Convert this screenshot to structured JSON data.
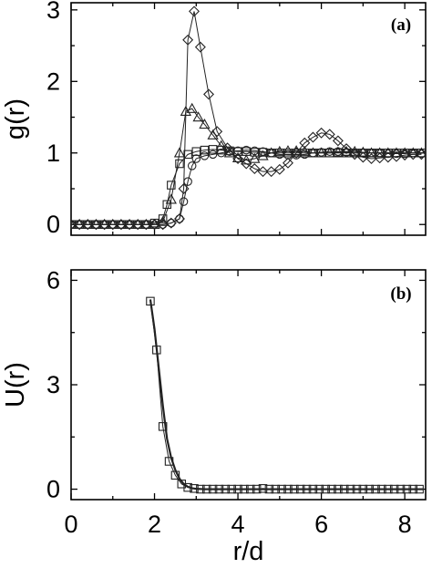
{
  "chart_data": [
    {
      "type": "line",
      "panel_label": "(a)",
      "xlabel": "",
      "ylabel": "g(r)",
      "xlim": [
        0,
        8.5
      ],
      "ylim": [
        -0.15,
        3.1
      ],
      "x_ticks": [
        0,
        2,
        4,
        6,
        8
      ],
      "y_ticks": [
        0,
        1,
        2,
        3
      ],
      "grid": false,
      "series": [
        {
          "marker": "diamond",
          "points": [
            [
              0,
              0
            ],
            [
              0.2,
              0
            ],
            [
              0.4,
              0
            ],
            [
              0.6,
              0
            ],
            [
              0.8,
              0
            ],
            [
              1,
              0
            ],
            [
              1.2,
              0
            ],
            [
              1.4,
              0
            ],
            [
              1.6,
              0
            ],
            [
              1.8,
              0
            ],
            [
              2,
              0
            ],
            [
              2.2,
              0
            ],
            [
              2.4,
              0.02
            ],
            [
              2.6,
              0.08
            ],
            [
              2.7,
              0.5
            ],
            [
              2.8,
              2.58
            ],
            [
              2.95,
              2.98
            ],
            [
              3.1,
              2.48
            ],
            [
              3.3,
              1.82
            ],
            [
              3.5,
              1.3
            ],
            [
              3.75,
              1.07
            ],
            [
              4.0,
              0.92
            ],
            [
              4.2,
              0.85
            ],
            [
              4.4,
              0.78
            ],
            [
              4.6,
              0.74
            ],
            [
              4.8,
              0.74
            ],
            [
              5.0,
              0.77
            ],
            [
              5.2,
              0.86
            ],
            [
              5.4,
              1.0
            ],
            [
              5.6,
              1.14
            ],
            [
              5.8,
              1.22
            ],
            [
              6.0,
              1.28
            ],
            [
              6.2,
              1.26
            ],
            [
              6.4,
              1.17
            ],
            [
              6.6,
              1.06
            ],
            [
              6.8,
              0.98
            ],
            [
              7.0,
              0.94
            ],
            [
              7.2,
              0.92
            ],
            [
              7.4,
              0.93
            ],
            [
              7.6,
              0.94
            ],
            [
              7.8,
              0.95
            ],
            [
              8.0,
              0.97
            ],
            [
              8.2,
              0.98
            ],
            [
              8.4,
              0.98
            ]
          ]
        },
        {
          "marker": "triangle",
          "points": [
            [
              0,
              0
            ],
            [
              0.2,
              0
            ],
            [
              0.4,
              0
            ],
            [
              0.6,
              0
            ],
            [
              0.8,
              0
            ],
            [
              1,
              0
            ],
            [
              1.2,
              0
            ],
            [
              1.4,
              0
            ],
            [
              1.6,
              0
            ],
            [
              1.8,
              0
            ],
            [
              2,
              0
            ],
            [
              2.2,
              0.04
            ],
            [
              2.4,
              0.35
            ],
            [
              2.6,
              1.0
            ],
            [
              2.75,
              1.58
            ],
            [
              2.9,
              1.62
            ],
            [
              3.05,
              1.5
            ],
            [
              3.2,
              1.4
            ],
            [
              3.4,
              1.25
            ],
            [
              3.6,
              1.1
            ],
            [
              3.8,
              1.0
            ],
            [
              4.0,
              0.93
            ],
            [
              4.2,
              0.9
            ],
            [
              4.4,
              0.92
            ],
            [
              4.6,
              0.96
            ],
            [
              4.8,
              1.0
            ],
            [
              5.0,
              1.02
            ],
            [
              5.2,
              1.03
            ],
            [
              5.4,
              1.03
            ],
            [
              5.6,
              1.02
            ],
            [
              5.8,
              1.0
            ],
            [
              6.0,
              1.0
            ],
            [
              6.2,
              1.0
            ],
            [
              6.4,
              1.01
            ],
            [
              6.6,
              1.02
            ],
            [
              6.8,
              1.02
            ],
            [
              7.0,
              1.01
            ],
            [
              7.2,
              1.0
            ],
            [
              7.4,
              1.0
            ],
            [
              7.6,
              1.0
            ],
            [
              7.8,
              1.0
            ],
            [
              8.0,
              1.0
            ],
            [
              8.2,
              1.0
            ],
            [
              8.4,
              1.0
            ]
          ]
        },
        {
          "marker": "square",
          "points": [
            [
              0,
              0
            ],
            [
              0.2,
              0
            ],
            [
              0.4,
              0
            ],
            [
              0.6,
              0
            ],
            [
              0.8,
              0
            ],
            [
              1,
              0
            ],
            [
              1.2,
              0
            ],
            [
              1.4,
              0
            ],
            [
              1.6,
              0
            ],
            [
              1.8,
              0
            ],
            [
              2,
              0.02
            ],
            [
              2.2,
              0.08
            ],
            [
              2.3,
              0.28
            ],
            [
              2.4,
              0.55
            ],
            [
              2.6,
              0.85
            ],
            [
              2.8,
              0.98
            ],
            [
              3.0,
              1.02
            ],
            [
              3.2,
              1.04
            ],
            [
              3.4,
              1.05
            ],
            [
              3.6,
              1.04
            ],
            [
              3.8,
              1.03
            ],
            [
              4.0,
              1.02
            ],
            [
              4.2,
              1.02
            ],
            [
              4.4,
              1.01
            ],
            [
              4.6,
              1.01
            ],
            [
              4.8,
              1.0
            ],
            [
              5.0,
              1.0
            ],
            [
              5.2,
              1.0
            ],
            [
              5.4,
              1.0
            ],
            [
              5.6,
              1.0
            ],
            [
              5.8,
              1.0
            ],
            [
              6.0,
              1.0
            ],
            [
              6.2,
              1.0
            ],
            [
              6.4,
              1.0
            ],
            [
              6.6,
              1.0
            ],
            [
              6.8,
              1.0
            ],
            [
              7.0,
              1.0
            ],
            [
              7.2,
              1.0
            ],
            [
              7.4,
              1.0
            ],
            [
              7.6,
              1.0
            ],
            [
              7.8,
              1.0
            ],
            [
              8.0,
              1.0
            ],
            [
              8.2,
              1.0
            ],
            [
              8.4,
              1.0
            ]
          ]
        },
        {
          "marker": "circle",
          "points": [
            [
              0,
              0
            ],
            [
              0.2,
              0
            ],
            [
              0.4,
              0
            ],
            [
              0.6,
              0
            ],
            [
              0.8,
              0
            ],
            [
              1,
              0
            ],
            [
              1.2,
              0
            ],
            [
              1.4,
              0
            ],
            [
              1.6,
              0
            ],
            [
              1.8,
              0
            ],
            [
              2,
              0
            ],
            [
              2.2,
              0
            ],
            [
              2.4,
              0.02
            ],
            [
              2.6,
              0.08
            ],
            [
              2.7,
              0.32
            ],
            [
              2.8,
              0.6
            ],
            [
              2.9,
              0.82
            ],
            [
              3.0,
              0.92
            ],
            [
              3.2,
              0.96
            ],
            [
              3.4,
              0.98
            ],
            [
              3.6,
              1.0
            ],
            [
              3.8,
              1.02
            ],
            [
              4.0,
              1.03
            ],
            [
              4.2,
              1.04
            ],
            [
              4.4,
              1.03
            ],
            [
              4.6,
              1.02
            ],
            [
              4.8,
              1.0
            ],
            [
              5.0,
              0.98
            ],
            [
              5.2,
              0.97
            ],
            [
              5.4,
              0.97
            ],
            [
              5.6,
              0.98
            ],
            [
              5.8,
              1.0
            ],
            [
              6.0,
              1.01
            ],
            [
              6.2,
              1.02
            ],
            [
              6.4,
              1.02
            ],
            [
              6.6,
              1.01
            ],
            [
              6.8,
              1.0
            ],
            [
              7.0,
              1.0
            ],
            [
              7.2,
              1.0
            ],
            [
              7.4,
              1.0
            ],
            [
              7.6,
              0.99
            ],
            [
              7.8,
              0.99
            ],
            [
              8.0,
              0.99
            ],
            [
              8.2,
              1.0
            ],
            [
              8.4,
              0.99
            ]
          ]
        }
      ]
    },
    {
      "type": "line",
      "panel_label": "(b)",
      "xlabel": "r/d",
      "ylabel": "U(r)",
      "xlim": [
        0,
        8.5
      ],
      "ylim": [
        -0.3,
        6.3
      ],
      "x_ticks": [
        0,
        2,
        4,
        6,
        8
      ],
      "y_ticks": [
        0,
        3,
        6
      ],
      "grid": false,
      "series": [
        {
          "marker": "square",
          "points": [
            [
              1.9,
              5.4
            ],
            [
              2.05,
              4.0
            ],
            [
              2.2,
              1.8
            ],
            [
              2.35,
              0.8
            ],
            [
              2.5,
              0.4
            ],
            [
              2.65,
              0.15
            ],
            [
              2.8,
              0.05
            ],
            [
              2.95,
              0.02
            ],
            [
              3.1,
              0.0
            ],
            [
              3.25,
              0.0
            ],
            [
              3.4,
              0.0
            ],
            [
              3.55,
              0.0
            ],
            [
              3.7,
              0.0
            ],
            [
              3.85,
              0.0
            ],
            [
              4.0,
              0.0
            ],
            [
              4.15,
              0.0
            ],
            [
              4.3,
              0.0
            ],
            [
              4.45,
              0.0
            ],
            [
              4.6,
              0.02
            ],
            [
              4.75,
              0.0
            ],
            [
              4.9,
              0.0
            ],
            [
              5.05,
              0.0
            ],
            [
              5.2,
              0.0
            ],
            [
              5.35,
              0.0
            ],
            [
              5.5,
              0.0
            ],
            [
              5.65,
              0.0
            ],
            [
              5.8,
              0.0
            ],
            [
              5.95,
              0.0
            ],
            [
              6.1,
              0.0
            ],
            [
              6.25,
              0.0
            ],
            [
              6.4,
              0.0
            ],
            [
              6.55,
              0.0
            ],
            [
              6.7,
              0.0
            ],
            [
              6.85,
              0.0
            ],
            [
              7.0,
              0.0
            ],
            [
              7.15,
              0.0
            ],
            [
              7.3,
              0.0
            ],
            [
              7.45,
              0.0
            ],
            [
              7.6,
              0.0
            ],
            [
              7.75,
              0.0
            ],
            [
              7.9,
              0.0
            ],
            [
              8.05,
              0.0
            ],
            [
              8.2,
              0.0
            ],
            [
              8.35,
              0.0
            ]
          ]
        },
        {
          "marker": "none",
          "points": [
            [
              1.9,
              5.45
            ],
            [
              2.0,
              4.6
            ],
            [
              2.1,
              3.5
            ],
            [
              2.2,
              2.4
            ],
            [
              2.3,
              1.45
            ],
            [
              2.4,
              0.9
            ],
            [
              2.5,
              0.55
            ],
            [
              2.6,
              0.3
            ],
            [
              2.7,
              0.15
            ],
            [
              2.8,
              0.07
            ],
            [
              2.9,
              0.03
            ],
            [
              3.0,
              0.01
            ],
            [
              3.2,
              0.0
            ],
            [
              3.5,
              0.0
            ],
            [
              4.0,
              0.0
            ],
            [
              4.5,
              0.0
            ],
            [
              5.0,
              0.0
            ],
            [
              6.0,
              0.0
            ],
            [
              7.0,
              0.0
            ],
            [
              8.0,
              0.0
            ],
            [
              8.45,
              0.0
            ]
          ]
        }
      ]
    }
  ]
}
